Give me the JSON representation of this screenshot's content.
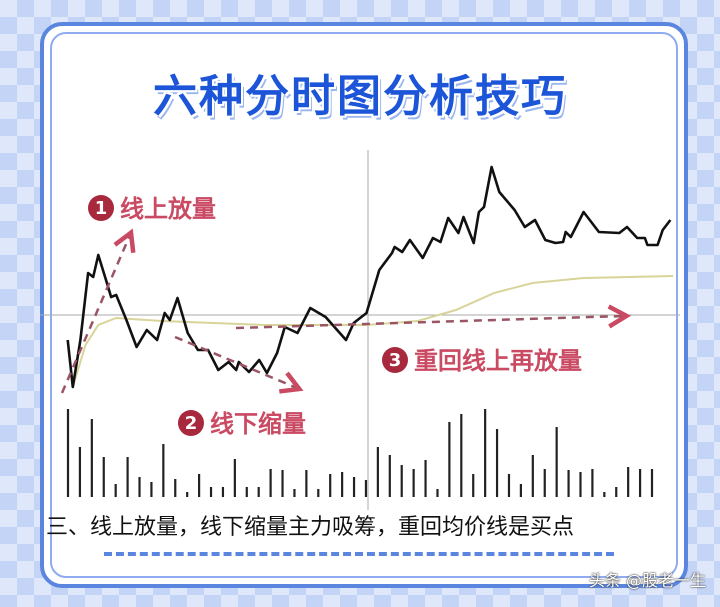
{
  "title": "六种分时图分析技巧",
  "caption": "三、线上放量，线下缩量主力吸筹，重回均价线是买点",
  "watermark": "头条 @股老一生",
  "annotations": [
    {
      "number": "1",
      "text": "线上放量"
    },
    {
      "number": "2",
      "text": "线下缩量"
    },
    {
      "number": "3",
      "text": "重回线上再放量"
    }
  ],
  "colors": {
    "price": "#111111",
    "avg_line": "#d8d49a",
    "annotation": "#c94a62",
    "arrow": "#9a5565",
    "frame": "#5b86e0",
    "title": "#1d55d8"
  },
  "chart_data": {
    "type": "line",
    "grid": false,
    "xlim": [
      0,
      240
    ],
    "ylim": [
      -80,
      150
    ],
    "reference_line": 0,
    "series": [
      {
        "role": "price",
        "points": [
          [
            3,
            -25
          ],
          [
            5,
            -72
          ],
          [
            8,
            -25
          ],
          [
            11,
            42
          ],
          [
            13,
            38
          ],
          [
            15,
            60
          ],
          [
            18,
            35
          ],
          [
            20,
            18
          ],
          [
            22,
            20
          ],
          [
            26,
            -5
          ],
          [
            30,
            -32
          ],
          [
            34,
            -15
          ],
          [
            38,
            -25
          ],
          [
            41,
            2
          ],
          [
            43,
            -5
          ],
          [
            46,
            17
          ],
          [
            50,
            -18
          ],
          [
            54,
            -35
          ],
          [
            58,
            -35
          ],
          [
            62,
            -55
          ],
          [
            66,
            -47
          ],
          [
            69,
            -55
          ],
          [
            70,
            -47
          ],
          [
            74,
            -57
          ],
          [
            78,
            -45
          ],
          [
            81,
            -58
          ],
          [
            85,
            -38
          ],
          [
            88,
            -12
          ],
          [
            93,
            -18
          ],
          [
            98,
            7
          ],
          [
            104,
            -2
          ],
          [
            112,
            -25
          ],
          [
            115,
            -8
          ],
          [
            120,
            2
          ],
          [
            125,
            45
          ],
          [
            130,
            62
          ],
          [
            131,
            68
          ],
          [
            134,
            63
          ],
          [
            137,
            75
          ],
          [
            142,
            57
          ],
          [
            146,
            77
          ],
          [
            149,
            73
          ],
          [
            152,
            97
          ],
          [
            156,
            82
          ],
          [
            158,
            98
          ],
          [
            162,
            72
          ],
          [
            164,
            103
          ],
          [
            166,
            108
          ],
          [
            169,
            148
          ],
          [
            172,
            123
          ],
          [
            178,
            105
          ],
          [
            182,
            88
          ],
          [
            186,
            95
          ],
          [
            190,
            75
          ],
          [
            194,
            72
          ],
          [
            197,
            73
          ],
          [
            198,
            83
          ],
          [
            200,
            78
          ],
          [
            205,
            103
          ],
          [
            211,
            83
          ],
          [
            219,
            82
          ],
          [
            222,
            88
          ],
          [
            226,
            77
          ],
          [
            229,
            77
          ],
          [
            230,
            70
          ],
          [
            234,
            70
          ],
          [
            236,
            85
          ],
          [
            239,
            95
          ]
        ]
      },
      {
        "role": "average",
        "points": [
          [
            5,
            -72
          ],
          [
            10,
            -30
          ],
          [
            15,
            -10
          ],
          [
            22,
            -3
          ],
          [
            40,
            -6
          ],
          [
            80,
            -10
          ],
          [
            120,
            -10
          ],
          [
            140,
            -6
          ],
          [
            155,
            5
          ],
          [
            170,
            22
          ],
          [
            185,
            32
          ],
          [
            205,
            37
          ],
          [
            240,
            39
          ]
        ]
      }
    ],
    "volume": [
      88,
      50,
      78,
      40,
      13,
      40,
      20,
      15,
      53,
      18,
      5,
      23,
      10,
      10,
      38,
      10,
      10,
      28,
      27,
      8,
      27,
      8,
      23,
      25,
      20,
      17,
      50,
      42,
      32,
      28,
      37,
      8,
      75,
      83,
      23,
      88,
      68,
      23,
      13,
      42,
      28,
      70,
      27,
      25,
      28,
      5,
      10,
      30,
      28,
      28
    ]
  }
}
